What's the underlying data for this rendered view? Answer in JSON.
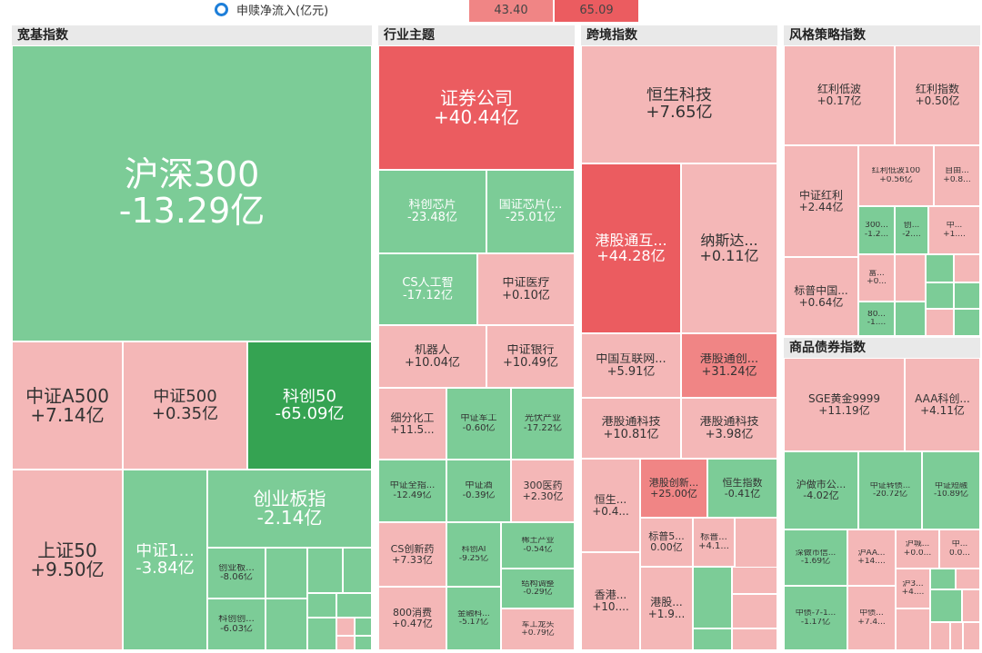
{
  "legend": {
    "label": "申赎净流入(亿元)"
  },
  "scale": [
    {
      "value": "43.40",
      "color": "#f08585"
    },
    {
      "value": "65.09",
      "color": "#eb5c60"
    }
  ],
  "colors": {
    "strongRed": "#eb5c60",
    "midRed": "#f08585",
    "lightRed": "#f4b7b7",
    "lightGreen": "#7ccc97",
    "midGreen": "#4fb56d",
    "darkGreen": "#35a352"
  },
  "chart_data": {
    "type": "treemap",
    "metric": "申赎净流入(亿元)",
    "groups": [
      {
        "title": "宽基指数",
        "items": [
          {
            "name": "沪深300",
            "value": "-13.29亿"
          },
          {
            "name": "中证A500",
            "value": "+7.14亿"
          },
          {
            "name": "中证500",
            "value": "+0.35亿"
          },
          {
            "name": "科创50",
            "value": "-65.09亿"
          },
          {
            "name": "创业板指",
            "value": "-2.14亿"
          },
          {
            "name": "上证50",
            "value": "+9.50亿"
          },
          {
            "name": "中证1...",
            "value": "-3.84亿"
          },
          {
            "name": "创业板...",
            "value": "-8.06亿"
          },
          {
            "name": "科创创...",
            "value": "-6.03亿"
          }
        ]
      },
      {
        "title": "行业主题",
        "items": [
          {
            "name": "证券公司",
            "value": "+40.44亿"
          },
          {
            "name": "科创芯片",
            "value": "-23.48亿"
          },
          {
            "name": "国证芯片(...",
            "value": "-25.01亿"
          },
          {
            "name": "CS人工智",
            "value": "-17.12亿"
          },
          {
            "name": "中证医疗",
            "value": "+0.10亿"
          },
          {
            "name": "机器人",
            "value": "+10.04亿"
          },
          {
            "name": "中证银行",
            "value": "+10.49亿"
          },
          {
            "name": "细分化工",
            "value": "+11.5..."
          },
          {
            "name": "中证军工",
            "value": "-0.60亿"
          },
          {
            "name": "光伏产业",
            "value": "-17.22亿"
          },
          {
            "name": "中证全指...",
            "value": "-12.49亿"
          },
          {
            "name": "中证酒",
            "value": "-0.39亿"
          },
          {
            "name": "300医药",
            "value": "+2.30亿"
          },
          {
            "name": "CS创新药",
            "value": "+7.33亿"
          },
          {
            "name": "科创AI",
            "value": "-9.25亿"
          },
          {
            "name": "稀土产业",
            "value": "-0.54亿"
          },
          {
            "name": "结构调整",
            "value": "-0.29亿"
          },
          {
            "name": "800消费",
            "value": "+0.47亿"
          },
          {
            "name": "金融科...",
            "value": "-5.17亿"
          },
          {
            "name": "军工龙头",
            "value": "+0.79亿"
          }
        ]
      },
      {
        "title": "跨境指数",
        "items": [
          {
            "name": "恒生科技",
            "value": "+7.65亿"
          },
          {
            "name": "港股通互...",
            "value": "+44.28亿"
          },
          {
            "name": "纳斯达...",
            "value": "+0.11亿"
          },
          {
            "name": "中国互联网...",
            "value": "+5.91亿"
          },
          {
            "name": "港股通创...",
            "value": "+31.24亿"
          },
          {
            "name": "港股通科技",
            "value": "+10.81亿"
          },
          {
            "name": "港股通科技",
            "value": "+3.98亿"
          },
          {
            "name": "港股创新...",
            "value": "+25.00亿"
          },
          {
            "name": "恒生指数",
            "value": "-0.41亿"
          },
          {
            "name": "恒生...",
            "value": "+0.4..."
          },
          {
            "name": "标普5...",
            "value": "0.00亿"
          },
          {
            "name": "标普...",
            "value": "+4.1..."
          },
          {
            "name": "香港...",
            "value": "+10...."
          },
          {
            "name": "港股...",
            "value": "+1.9..."
          }
        ]
      },
      {
        "title": "风格策略指数",
        "items": [
          {
            "name": "红利低波",
            "value": "+0.17亿"
          },
          {
            "name": "红利指数",
            "value": "+0.50亿"
          },
          {
            "name": "红利低波100",
            "value": "+0.56亿"
          },
          {
            "name": "自由...",
            "value": "+0.8..."
          },
          {
            "name": "中证红利",
            "value": "+2.44亿"
          },
          {
            "name": "300...",
            "value": "-1.2..."
          },
          {
            "name": "创...",
            "value": "-2...."
          },
          {
            "name": "中...",
            "value": "+1...."
          },
          {
            "name": "富...",
            "value": "+0..."
          },
          {
            "name": "标普中国...",
            "value": "+0.64亿"
          },
          {
            "name": "80...",
            "value": "-1...."
          }
        ]
      },
      {
        "title": "商品债券指数",
        "items": [
          {
            "name": "SGE黄金9999",
            "value": "+11.19亿"
          },
          {
            "name": "AAA科创...",
            "value": "+4.11亿"
          },
          {
            "name": "沪做市公...",
            "value": "-4.02亿"
          },
          {
            "name": "中证转债...",
            "value": "-20.72亿"
          },
          {
            "name": "中证短融",
            "value": "-10.89亿"
          },
          {
            "name": "深做市信...",
            "value": "-1.69亿"
          },
          {
            "name": "沪AA...",
            "value": "+14...."
          },
          {
            "name": "沪城...",
            "value": "+0.0..."
          },
          {
            "name": "中...",
            "value": "0.0..."
          },
          {
            "name": "沪3...",
            "value": "+4...."
          },
          {
            "name": "中债-7-1...",
            "value": "-1.17亿"
          },
          {
            "name": "中债...",
            "value": "+7.4..."
          }
        ]
      }
    ]
  }
}
